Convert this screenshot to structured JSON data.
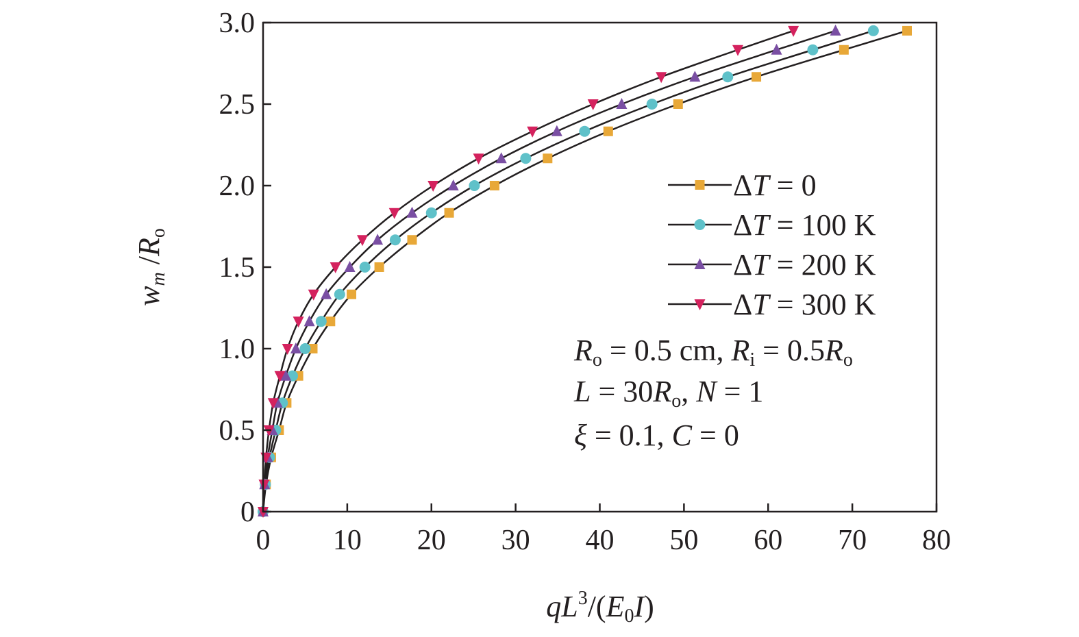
{
  "chart_data": {
    "type": "line",
    "xlabel": "qL3/(E0I)",
    "ylabel": "wm/Ro",
    "xlim": [
      0,
      80
    ],
    "ylim": [
      0,
      3.0
    ],
    "x_ticks": [
      "0",
      "10",
      "20",
      "30",
      "40",
      "50",
      "60",
      "70",
      "80"
    ],
    "y_ticks": [
      "0",
      "0.5",
      "1.0",
      "1.5",
      "2.0",
      "2.5",
      "3.0"
    ],
    "grid": false,
    "legend_position": "right",
    "y_markers": [
      0,
      0.167,
      0.333,
      0.5,
      0.667,
      0.833,
      1.0,
      1.167,
      1.333,
      1.5,
      1.667,
      1.833,
      2.0,
      2.167,
      2.333,
      2.5,
      2.667,
      2.833,
      3.0
    ],
    "series": [
      {
        "name": "ΔT = 0",
        "color": "#e8a838",
        "marker": "square",
        "x": [
          0,
          0.35,
          0.97,
          1.9,
          2.8,
          4.2,
          5.9,
          8.0,
          10.5,
          13.8,
          17.7,
          22.1,
          27.5,
          33.8,
          41.0,
          49.3,
          58.6,
          69.0,
          76.5
        ],
        "y": [
          0,
          0.167,
          0.333,
          0.5,
          0.667,
          0.833,
          1.0,
          1.167,
          1.333,
          1.5,
          1.667,
          1.833,
          2.0,
          2.167,
          2.333,
          2.5,
          2.667,
          2.833,
          2.95
        ]
      },
      {
        "name": "ΔT = 100 K",
        "color": "#5fc1c9",
        "marker": "circle",
        "x": [
          0,
          0.27,
          0.76,
          1.5,
          2.3,
          3.5,
          5.0,
          6.9,
          9.1,
          12.1,
          15.7,
          20.0,
          25.1,
          31.2,
          38.2,
          46.2,
          55.2,
          65.3,
          72.5
        ],
        "y": [
          0,
          0.167,
          0.333,
          0.5,
          0.667,
          0.833,
          1.0,
          1.167,
          1.333,
          1.5,
          1.667,
          1.833,
          2.0,
          2.167,
          2.333,
          2.5,
          2.667,
          2.833,
          2.95
        ]
      },
      {
        "name": "ΔT = 200 K",
        "color": "#7a4fa3",
        "marker": "triangle-up",
        "x": [
          0,
          0.19,
          0.55,
          1.1,
          1.7,
          2.7,
          3.9,
          5.5,
          7.5,
          10.3,
          13.6,
          17.7,
          22.6,
          28.3,
          34.9,
          42.6,
          51.3,
          61.0,
          68.0
        ],
        "y": [
          0,
          0.167,
          0.333,
          0.5,
          0.667,
          0.833,
          1.0,
          1.167,
          1.333,
          1.5,
          1.667,
          1.833,
          2.0,
          2.167,
          2.333,
          2.5,
          2.667,
          2.833,
          2.95
        ]
      },
      {
        "name": "ΔT = 300 K",
        "color": "#d4225e",
        "marker": "triangle-down",
        "x": [
          0,
          0.12,
          0.35,
          0.7,
          1.2,
          2.0,
          2.9,
          4.2,
          6.0,
          8.6,
          11.8,
          15.6,
          20.2,
          25.6,
          32.0,
          39.2,
          47.3,
          56.4,
          63.0
        ],
        "y": [
          0,
          0.167,
          0.333,
          0.5,
          0.667,
          0.833,
          1.0,
          1.167,
          1.333,
          1.5,
          1.667,
          1.833,
          2.0,
          2.167,
          2.333,
          2.5,
          2.667,
          2.833,
          2.95
        ]
      }
    ],
    "annotations": [
      "Ro = 0.5 cm, Ri = 0.5Ro",
      "L = 30Ro, N = 1",
      "ξ = 0.1, C = 0"
    ]
  },
  "labels": {
    "x_q": "q",
    "x_L": "L",
    "x_3": "3",
    "x_open": "/(",
    "x_E": "E",
    "x_0": "0",
    "x_I": "I",
    "x_close": ")",
    "y_w": "w",
    "y_m": "m",
    "y_slash": " /",
    "y_R": "R",
    "y_o": "o",
    "legend_delta": "Δ",
    "legend_T": "T",
    "legend_values": [
      " = 0",
      " = 100 K",
      " = 200 K",
      " = 300 K"
    ],
    "p1": {
      "R1": "R",
      "o1": "o",
      "t1": " = 0.5 cm, ",
      "R2": "R",
      "i2": "i",
      "t2": " = 0.5",
      "R3": "R",
      "o3": "o"
    },
    "p2": {
      "L": "L",
      "t1": " = 30",
      "R": "R",
      "o": "o",
      "t2": ", ",
      "N": "N",
      "t3": " = 1"
    },
    "p3": {
      "xi": "ξ",
      "t1": " = 0.1, ",
      "C": "C",
      "t2": " = 0"
    }
  }
}
